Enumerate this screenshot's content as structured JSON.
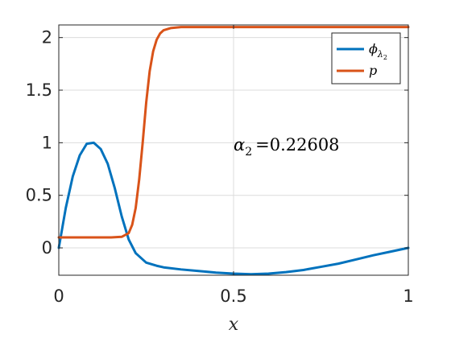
{
  "chart_data": {
    "type": "line",
    "xlabel": "x",
    "xlim": [
      0,
      1
    ],
    "ylim": [
      -0.26,
      2.12
    ],
    "xticks": [
      {
        "value": 0,
        "label": "0"
      },
      {
        "value": 0.5,
        "label": "0.5"
      },
      {
        "value": 1,
        "label": "1"
      }
    ],
    "yticks": [
      {
        "value": 0,
        "label": "0"
      },
      {
        "value": 0.5,
        "label": "0.5"
      },
      {
        "value": 1,
        "label": "1"
      },
      {
        "value": 1.5,
        "label": "1.5"
      },
      {
        "value": 2,
        "label": "2"
      }
    ],
    "grid": true,
    "legend_position": "top-right",
    "annotation": {
      "label": "α",
      "subscript": "2",
      "value": "=0.22608",
      "x": 0.5,
      "y": 0.98
    },
    "series": [
      {
        "name": "ϕ",
        "name_subscript": "λ",
        "name_subsubscript": "2",
        "color": "#0072BD",
        "x": [
          0,
          0.02,
          0.04,
          0.06,
          0.08,
          0.1,
          0.12,
          0.14,
          0.16,
          0.18,
          0.2,
          0.22,
          0.25,
          0.28,
          0.3,
          0.35,
          0.4,
          0.45,
          0.5,
          0.55,
          0.6,
          0.65,
          0.7,
          0.75,
          0.8,
          0.85,
          0.9,
          0.95,
          1.0
        ],
        "y": [
          0,
          0.38,
          0.68,
          0.88,
          0.99,
          1.0,
          0.94,
          0.8,
          0.57,
          0.3,
          0.08,
          -0.05,
          -0.14,
          -0.17,
          -0.185,
          -0.205,
          -0.22,
          -0.235,
          -0.245,
          -0.25,
          -0.245,
          -0.23,
          -0.21,
          -0.18,
          -0.15,
          -0.11,
          -0.07,
          -0.035,
          0.0
        ]
      },
      {
        "name": "p",
        "color": "#D95319",
        "x": [
          0,
          0.05,
          0.1,
          0.15,
          0.18,
          0.2,
          0.21,
          0.22,
          0.23,
          0.24,
          0.25,
          0.26,
          0.27,
          0.28,
          0.29,
          0.3,
          0.32,
          0.35,
          0.4,
          0.5,
          0.6,
          0.7,
          0.8,
          0.9,
          1.0
        ],
        "y": [
          0.1,
          0.1,
          0.1,
          0.1,
          0.105,
          0.14,
          0.22,
          0.38,
          0.65,
          1.0,
          1.38,
          1.68,
          1.87,
          1.98,
          2.04,
          2.07,
          2.09,
          2.1,
          2.1,
          2.1,
          2.1,
          2.1,
          2.1,
          2.1,
          2.1
        ]
      }
    ]
  }
}
